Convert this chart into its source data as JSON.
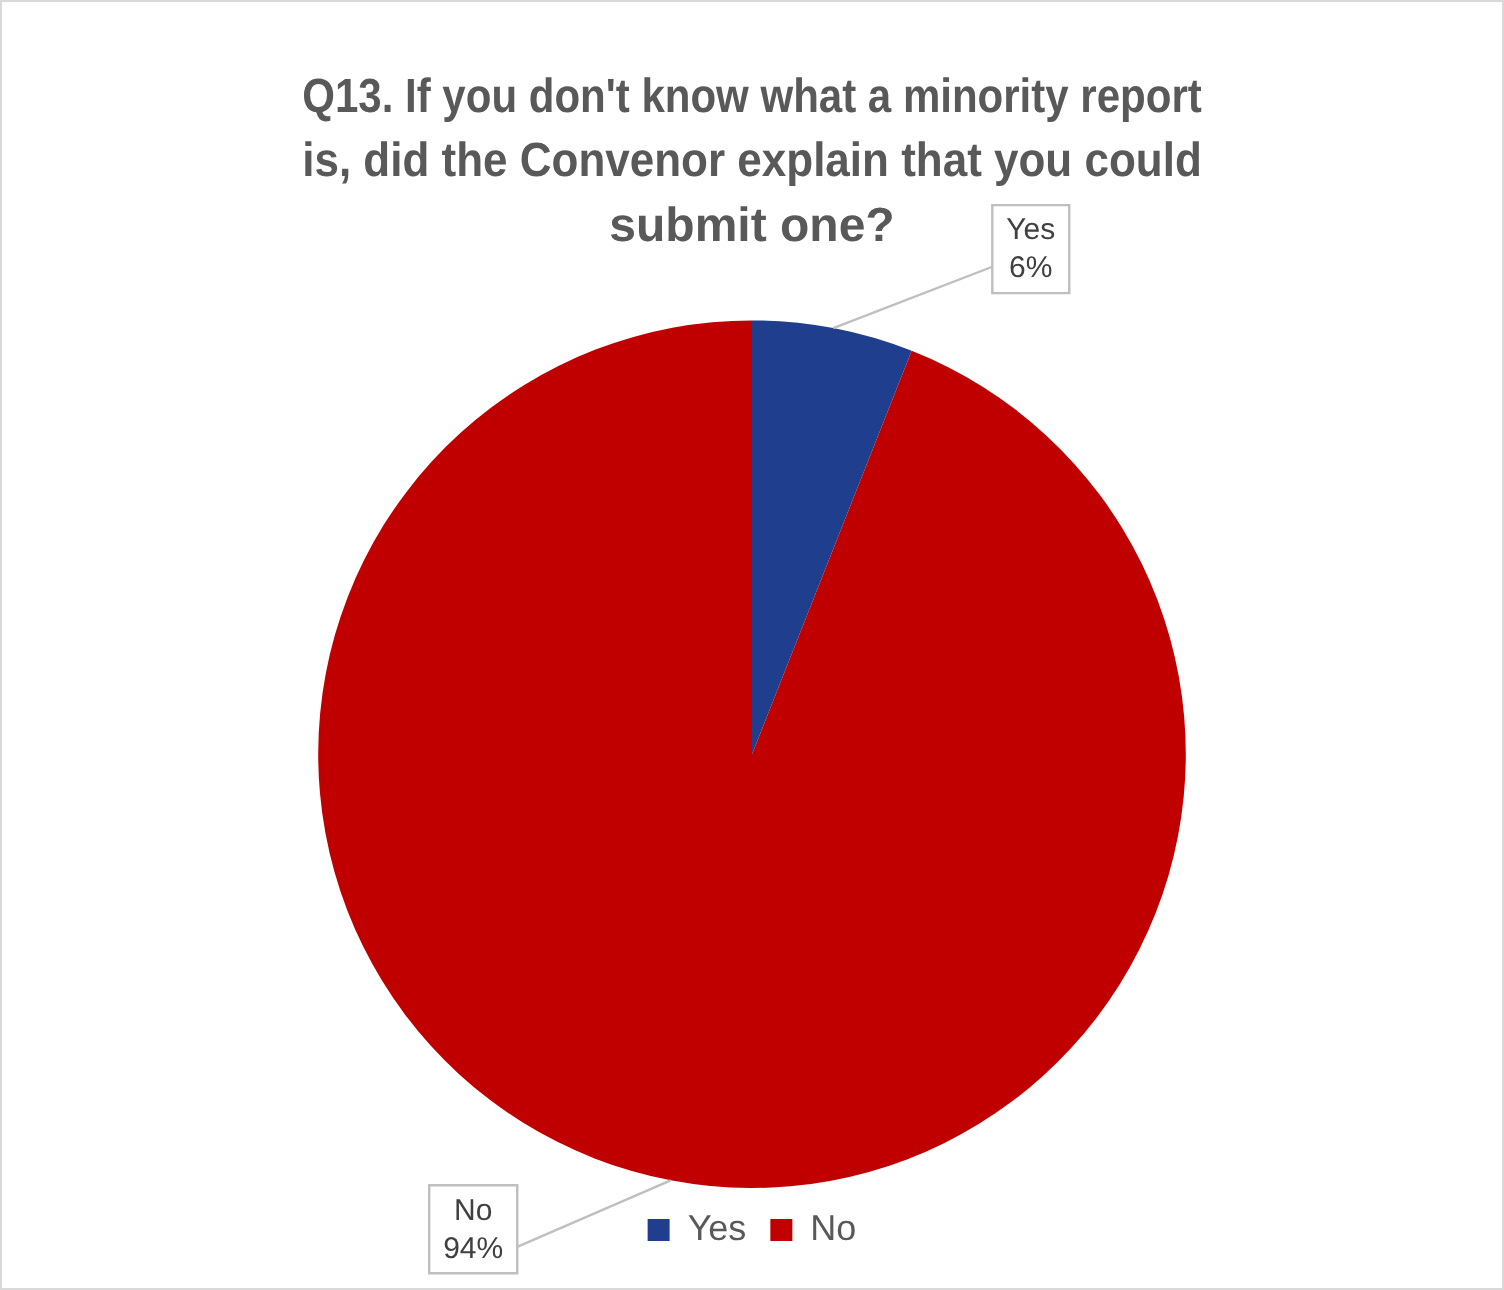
{
  "chart_data": {
    "type": "pie",
    "title": "Q13. If you don't know what a minority report is, did the Convenor explain that you could submit one?",
    "categories": [
      "Yes",
      "No"
    ],
    "values": [
      6,
      94
    ],
    "colors": [
      "#203e8e",
      "#c00000"
    ],
    "value_labels": [
      "6%",
      "94%"
    ],
    "legend": "bottom"
  }
}
